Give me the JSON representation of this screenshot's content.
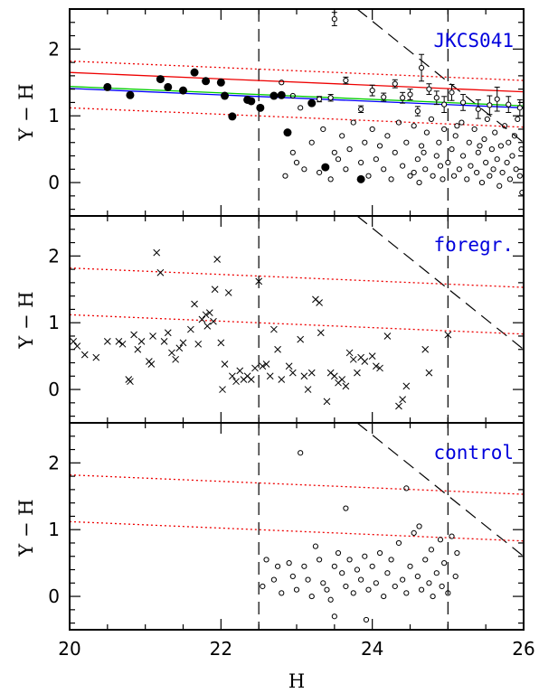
{
  "colors": {
    "label": "#0000dd",
    "red": "#ee0000",
    "green": "#00cc00",
    "blue": "#0000ff",
    "ink": "#000000"
  },
  "chart_data": [
    {
      "type": "scatter",
      "panel_label": "JKCS041",
      "xlabel": "",
      "ylabel": "Y − H",
      "xlim": [
        20,
        26
      ],
      "ylim": [
        -0.5,
        2.6
      ],
      "x_ticks": [
        20,
        22,
        24,
        26
      ],
      "y_ticks": [
        0,
        1,
        2
      ],
      "vlines": [
        22.5,
        25.0
      ],
      "dashed_line": [
        [
          23.8,
          2.6
        ],
        [
          26.0,
          0.6
        ]
      ],
      "lines": [
        {
          "color": "red",
          "style": "solid",
          "points": [
            [
              20,
              1.65
            ],
            [
              26,
              1.36
            ]
          ]
        },
        {
          "color": "green",
          "style": "solid",
          "points": [
            [
              20,
              1.44
            ],
            [
              26,
              1.15
            ]
          ]
        },
        {
          "color": "blue",
          "style": "solid",
          "points": [
            [
              20,
              1.41
            ],
            [
              26,
              1.12
            ]
          ]
        },
        {
          "color": "red",
          "style": "dotted",
          "points": [
            [
              20,
              1.82
            ],
            [
              26,
              1.53
            ]
          ]
        },
        {
          "color": "red",
          "style": "dotted",
          "points": [
            [
              20,
              1.12
            ],
            [
              26,
              0.83
            ]
          ]
        }
      ],
      "members": [
        [
          20.5,
          1.43
        ],
        [
          20.8,
          1.31
        ],
        [
          21.2,
          1.55
        ],
        [
          21.3,
          1.43
        ],
        [
          21.5,
          1.38
        ],
        [
          21.65,
          1.65
        ],
        [
          21.8,
          1.52
        ],
        [
          22.0,
          1.5
        ],
        [
          22.05,
          1.3
        ],
        [
          22.15,
          0.99
        ],
        [
          22.35,
          1.24
        ],
        [
          22.4,
          1.22
        ],
        [
          22.52,
          1.12
        ],
        [
          22.7,
          1.3
        ],
        [
          22.8,
          1.31
        ],
        [
          22.88,
          0.75
        ],
        [
          23.2,
          1.19
        ],
        [
          23.38,
          0.23
        ],
        [
          23.85,
          0.05
        ]
      ],
      "errorbar_points": [
        {
          "x": 23.5,
          "y": 2.45,
          "err": 0.1
        },
        {
          "x": 23.3,
          "y": 1.25,
          "err": 0.04
        },
        {
          "x": 23.45,
          "y": 1.27,
          "err": 0.05
        },
        {
          "x": 23.65,
          "y": 1.53,
          "err": 0.05
        },
        {
          "x": 23.85,
          "y": 1.1,
          "err": 0.05
        },
        {
          "x": 24.0,
          "y": 1.38,
          "err": 0.08
        },
        {
          "x": 24.15,
          "y": 1.28,
          "err": 0.06
        },
        {
          "x": 24.3,
          "y": 1.48,
          "err": 0.06
        },
        {
          "x": 24.4,
          "y": 1.27,
          "err": 0.08
        },
        {
          "x": 24.5,
          "y": 1.32,
          "err": 0.08
        },
        {
          "x": 24.6,
          "y": 1.07,
          "err": 0.07
        },
        {
          "x": 24.65,
          "y": 1.72,
          "err": 0.2
        },
        {
          "x": 24.75,
          "y": 1.4,
          "err": 0.08
        },
        {
          "x": 24.85,
          "y": 1.27,
          "err": 0.1
        },
        {
          "x": 24.95,
          "y": 1.17,
          "err": 0.12
        },
        {
          "x": 25.05,
          "y": 1.35,
          "err": 0.12
        },
        {
          "x": 25.2,
          "y": 1.2,
          "err": 0.12
        },
        {
          "x": 25.4,
          "y": 1.1,
          "err": 0.14
        },
        {
          "x": 25.55,
          "y": 1.16,
          "err": 0.14
        },
        {
          "x": 25.65,
          "y": 1.25,
          "err": 0.18
        },
        {
          "x": 25.8,
          "y": 1.17,
          "err": 0.12
        },
        {
          "x": 25.95,
          "y": 1.12,
          "err": 0.12
        }
      ],
      "open_points": [
        [
          22.8,
          1.5
        ],
        [
          22.95,
          1.3
        ],
        [
          23.05,
          1.12
        ],
        [
          22.85,
          0.1
        ],
        [
          22.95,
          0.45
        ],
        [
          23.0,
          0.3
        ],
        [
          23.1,
          0.2
        ],
        [
          23.2,
          0.6
        ],
        [
          23.3,
          0.15
        ],
        [
          23.35,
          0.8
        ],
        [
          23.45,
          0.05
        ],
        [
          23.5,
          0.45
        ],
        [
          23.55,
          0.35
        ],
        [
          23.6,
          0.7
        ],
        [
          23.65,
          0.2
        ],
        [
          23.7,
          0.5
        ],
        [
          23.75,
          0.9
        ],
        [
          23.85,
          0.3
        ],
        [
          23.9,
          0.6
        ],
        [
          23.95,
          0.1
        ],
        [
          24.0,
          0.8
        ],
        [
          24.05,
          0.35
        ],
        [
          24.1,
          0.55
        ],
        [
          24.15,
          0.2
        ],
        [
          24.2,
          0.7
        ],
        [
          24.25,
          0.05
        ],
        [
          24.3,
          0.45
        ],
        [
          24.35,
          0.9
        ],
        [
          24.4,
          0.25
        ],
        [
          24.45,
          0.6
        ],
        [
          24.5,
          0.1
        ],
        [
          24.55,
          0.85
        ],
        [
          24.6,
          0.35
        ],
        [
          24.62,
          0.0
        ],
        [
          24.65,
          0.55
        ],
        [
          24.7,
          0.2
        ],
        [
          24.72,
          0.75
        ],
        [
          24.78,
          0.95
        ],
        [
          24.8,
          0.1
        ],
        [
          24.85,
          0.4
        ],
        [
          24.88,
          0.6
        ],
        [
          24.9,
          0.25
        ],
        [
          24.93,
          0.05
        ],
        [
          24.95,
          0.8
        ],
        [
          25.0,
          0.3
        ],
        [
          25.05,
          0.5
        ],
        [
          25.08,
          0.1
        ],
        [
          25.1,
          0.7
        ],
        [
          25.15,
          0.2
        ],
        [
          25.18,
          0.9
        ],
        [
          25.2,
          0.4
        ],
        [
          25.25,
          0.05
        ],
        [
          25.28,
          0.6
        ],
        [
          25.3,
          0.25
        ],
        [
          25.35,
          0.8
        ],
        [
          25.38,
          0.15
        ],
        [
          25.4,
          0.45
        ],
        [
          25.45,
          0.0
        ],
        [
          25.48,
          0.65
        ],
        [
          25.5,
          0.3
        ],
        [
          25.52,
          0.95
        ],
        [
          25.55,
          0.1
        ],
        [
          25.58,
          0.5
        ],
        [
          25.6,
          0.2
        ],
        [
          25.62,
          0.75
        ],
        [
          25.65,
          0.35
        ],
        [
          25.68,
          -0.05
        ],
        [
          25.7,
          0.55
        ],
        [
          25.72,
          0.15
        ],
        [
          25.75,
          0.85
        ],
        [
          25.78,
          0.3
        ],
        [
          25.8,
          0.6
        ],
        [
          25.82,
          0.05
        ],
        [
          25.85,
          0.4
        ],
        [
          25.88,
          0.7
        ],
        [
          25.9,
          0.2
        ],
        [
          25.92,
          0.95
        ],
        [
          25.95,
          0.1
        ],
        [
          25.97,
          0.5
        ],
        [
          25.98,
          -0.15
        ],
        [
          24.55,
          0.15
        ],
        [
          24.68,
          0.45
        ],
        [
          25.12,
          0.85
        ],
        [
          25.42,
          0.55
        ]
      ]
    },
    {
      "type": "scatter",
      "panel_label": "foregr.",
      "xlabel": "",
      "ylabel": "Y − H",
      "xlim": [
        20,
        26
      ],
      "ylim": [
        -0.5,
        2.6
      ],
      "x_ticks": [
        20,
        22,
        24,
        26
      ],
      "y_ticks": [
        0,
        1,
        2
      ],
      "vlines": [
        22.5,
        25.0
      ],
      "dashed_line": [
        [
          23.8,
          2.6
        ],
        [
          26.0,
          0.6
        ]
      ],
      "lines": [
        {
          "color": "red",
          "style": "dotted",
          "points": [
            [
              20,
              1.82
            ],
            [
              26,
              1.53
            ]
          ]
        },
        {
          "color": "red",
          "style": "dotted",
          "points": [
            [
              20,
              1.12
            ],
            [
              26,
              0.83
            ]
          ]
        }
      ],
      "cross_points": [
        [
          20.05,
          0.72
        ],
        [
          20.1,
          0.65
        ],
        [
          20.2,
          0.52
        ],
        [
          20.35,
          0.48
        ],
        [
          20.5,
          0.72
        ],
        [
          20.65,
          0.72
        ],
        [
          20.7,
          0.68
        ],
        [
          20.78,
          0.15
        ],
        [
          20.8,
          0.12
        ],
        [
          20.85,
          0.82
        ],
        [
          20.9,
          0.6
        ],
        [
          20.95,
          0.72
        ],
        [
          21.05,
          0.42
        ],
        [
          21.08,
          0.38
        ],
        [
          21.1,
          0.8
        ],
        [
          21.15,
          2.05
        ],
        [
          21.2,
          1.75
        ],
        [
          21.25,
          0.72
        ],
        [
          21.3,
          0.85
        ],
        [
          21.35,
          0.55
        ],
        [
          21.4,
          0.45
        ],
        [
          21.45,
          0.62
        ],
        [
          21.5,
          0.7
        ],
        [
          21.6,
          0.9
        ],
        [
          21.65,
          1.28
        ],
        [
          21.7,
          0.68
        ],
        [
          21.75,
          1.05
        ],
        [
          21.8,
          1.12
        ],
        [
          21.82,
          0.95
        ],
        [
          21.85,
          1.15
        ],
        [
          21.9,
          1.02
        ],
        [
          21.92,
          1.5
        ],
        [
          21.95,
          1.95
        ],
        [
          22.0,
          0.7
        ],
        [
          22.02,
          0.0
        ],
        [
          22.05,
          0.38
        ],
        [
          22.1,
          1.45
        ],
        [
          22.15,
          0.2
        ],
        [
          22.2,
          0.12
        ],
        [
          22.25,
          0.28
        ],
        [
          22.3,
          0.15
        ],
        [
          22.35,
          0.2
        ],
        [
          22.4,
          0.15
        ],
        [
          22.45,
          0.32
        ],
        [
          22.5,
          1.62
        ],
        [
          22.55,
          0.35
        ],
        [
          22.6,
          0.38
        ],
        [
          22.65,
          0.2
        ],
        [
          22.7,
          0.9
        ],
        [
          22.75,
          0.6
        ],
        [
          22.8,
          0.15
        ],
        [
          22.9,
          0.35
        ],
        [
          22.95,
          0.25
        ],
        [
          23.05,
          0.75
        ],
        [
          23.1,
          0.2
        ],
        [
          23.15,
          0.0
        ],
        [
          23.2,
          0.25
        ],
        [
          23.25,
          1.35
        ],
        [
          23.3,
          1.3
        ],
        [
          23.32,
          0.85
        ],
        [
          23.4,
          -0.18
        ],
        [
          23.45,
          0.25
        ],
        [
          23.5,
          0.2
        ],
        [
          23.55,
          0.1
        ],
        [
          23.6,
          0.15
        ],
        [
          23.65,
          0.05
        ],
        [
          23.7,
          0.55
        ],
        [
          23.75,
          0.45
        ],
        [
          23.8,
          0.25
        ],
        [
          23.85,
          0.48
        ],
        [
          23.9,
          0.42
        ],
        [
          24.0,
          0.5
        ],
        [
          24.05,
          0.35
        ],
        [
          24.1,
          0.32
        ],
        [
          24.2,
          0.8
        ],
        [
          24.35,
          -0.25
        ],
        [
          24.4,
          -0.15
        ],
        [
          24.45,
          0.05
        ],
        [
          24.7,
          0.6
        ],
        [
          24.75,
          0.25
        ],
        [
          25.0,
          0.82
        ]
      ]
    },
    {
      "type": "scatter",
      "panel_label": "control",
      "xlabel": "H",
      "ylabel": "Y − H",
      "xlim": [
        20,
        26
      ],
      "ylim": [
        -0.5,
        2.6
      ],
      "x_ticks": [
        20,
        22,
        24,
        26
      ],
      "y_ticks": [
        0,
        1,
        2
      ],
      "x_tick_labels": [
        "20",
        "22",
        "24",
        "26"
      ],
      "vlines": [
        22.5,
        25.0
      ],
      "dashed_line": [
        [
          23.8,
          2.6
        ],
        [
          26.0,
          0.6
        ]
      ],
      "lines": [
        {
          "color": "red",
          "style": "dotted",
          "points": [
            [
              20,
              1.82
            ],
            [
              26,
              1.53
            ]
          ]
        },
        {
          "color": "red",
          "style": "dotted",
          "points": [
            [
              20,
              1.12
            ],
            [
              26,
              0.83
            ]
          ]
        }
      ],
      "open_points": [
        [
          23.05,
          2.15
        ],
        [
          24.45,
          1.62
        ],
        [
          23.65,
          1.32
        ],
        [
          22.55,
          0.15
        ],
        [
          22.6,
          0.55
        ],
        [
          22.7,
          0.25
        ],
        [
          22.75,
          0.45
        ],
        [
          22.8,
          0.05
        ],
        [
          22.9,
          0.5
        ],
        [
          22.95,
          0.3
        ],
        [
          23.0,
          0.1
        ],
        [
          23.1,
          0.45
        ],
        [
          23.15,
          0.25
        ],
        [
          23.2,
          0.0
        ],
        [
          23.25,
          0.75
        ],
        [
          23.3,
          0.55
        ],
        [
          23.35,
          0.2
        ],
        [
          23.4,
          0.1
        ],
        [
          23.45,
          -0.05
        ],
        [
          23.5,
          0.45
        ],
        [
          23.5,
          -0.3
        ],
        [
          23.55,
          0.65
        ],
        [
          23.6,
          0.35
        ],
        [
          23.65,
          0.15
        ],
        [
          23.7,
          0.55
        ],
        [
          23.75,
          0.05
        ],
        [
          23.8,
          0.4
        ],
        [
          23.85,
          0.25
        ],
        [
          23.9,
          0.6
        ],
        [
          23.92,
          -0.35
        ],
        [
          23.95,
          0.1
        ],
        [
          24.0,
          0.45
        ],
        [
          24.05,
          0.2
        ],
        [
          24.1,
          0.65
        ],
        [
          24.15,
          0.0
        ],
        [
          24.2,
          0.35
        ],
        [
          24.25,
          0.55
        ],
        [
          24.3,
          0.15
        ],
        [
          24.35,
          0.8
        ],
        [
          24.4,
          0.25
        ],
        [
          24.45,
          0.05
        ],
        [
          24.5,
          0.45
        ],
        [
          24.55,
          0.95
        ],
        [
          24.6,
          0.3
        ],
        [
          24.62,
          1.05
        ],
        [
          24.65,
          0.1
        ],
        [
          24.7,
          0.55
        ],
        [
          24.75,
          0.2
        ],
        [
          24.78,
          0.7
        ],
        [
          24.8,
          0.0
        ],
        [
          24.85,
          0.35
        ],
        [
          24.9,
          0.85
        ],
        [
          24.92,
          0.15
        ],
        [
          24.95,
          0.5
        ],
        [
          25.0,
          0.05
        ],
        [
          25.05,
          0.9
        ],
        [
          25.1,
          0.3
        ],
        [
          25.12,
          0.65
        ]
      ]
    }
  ]
}
